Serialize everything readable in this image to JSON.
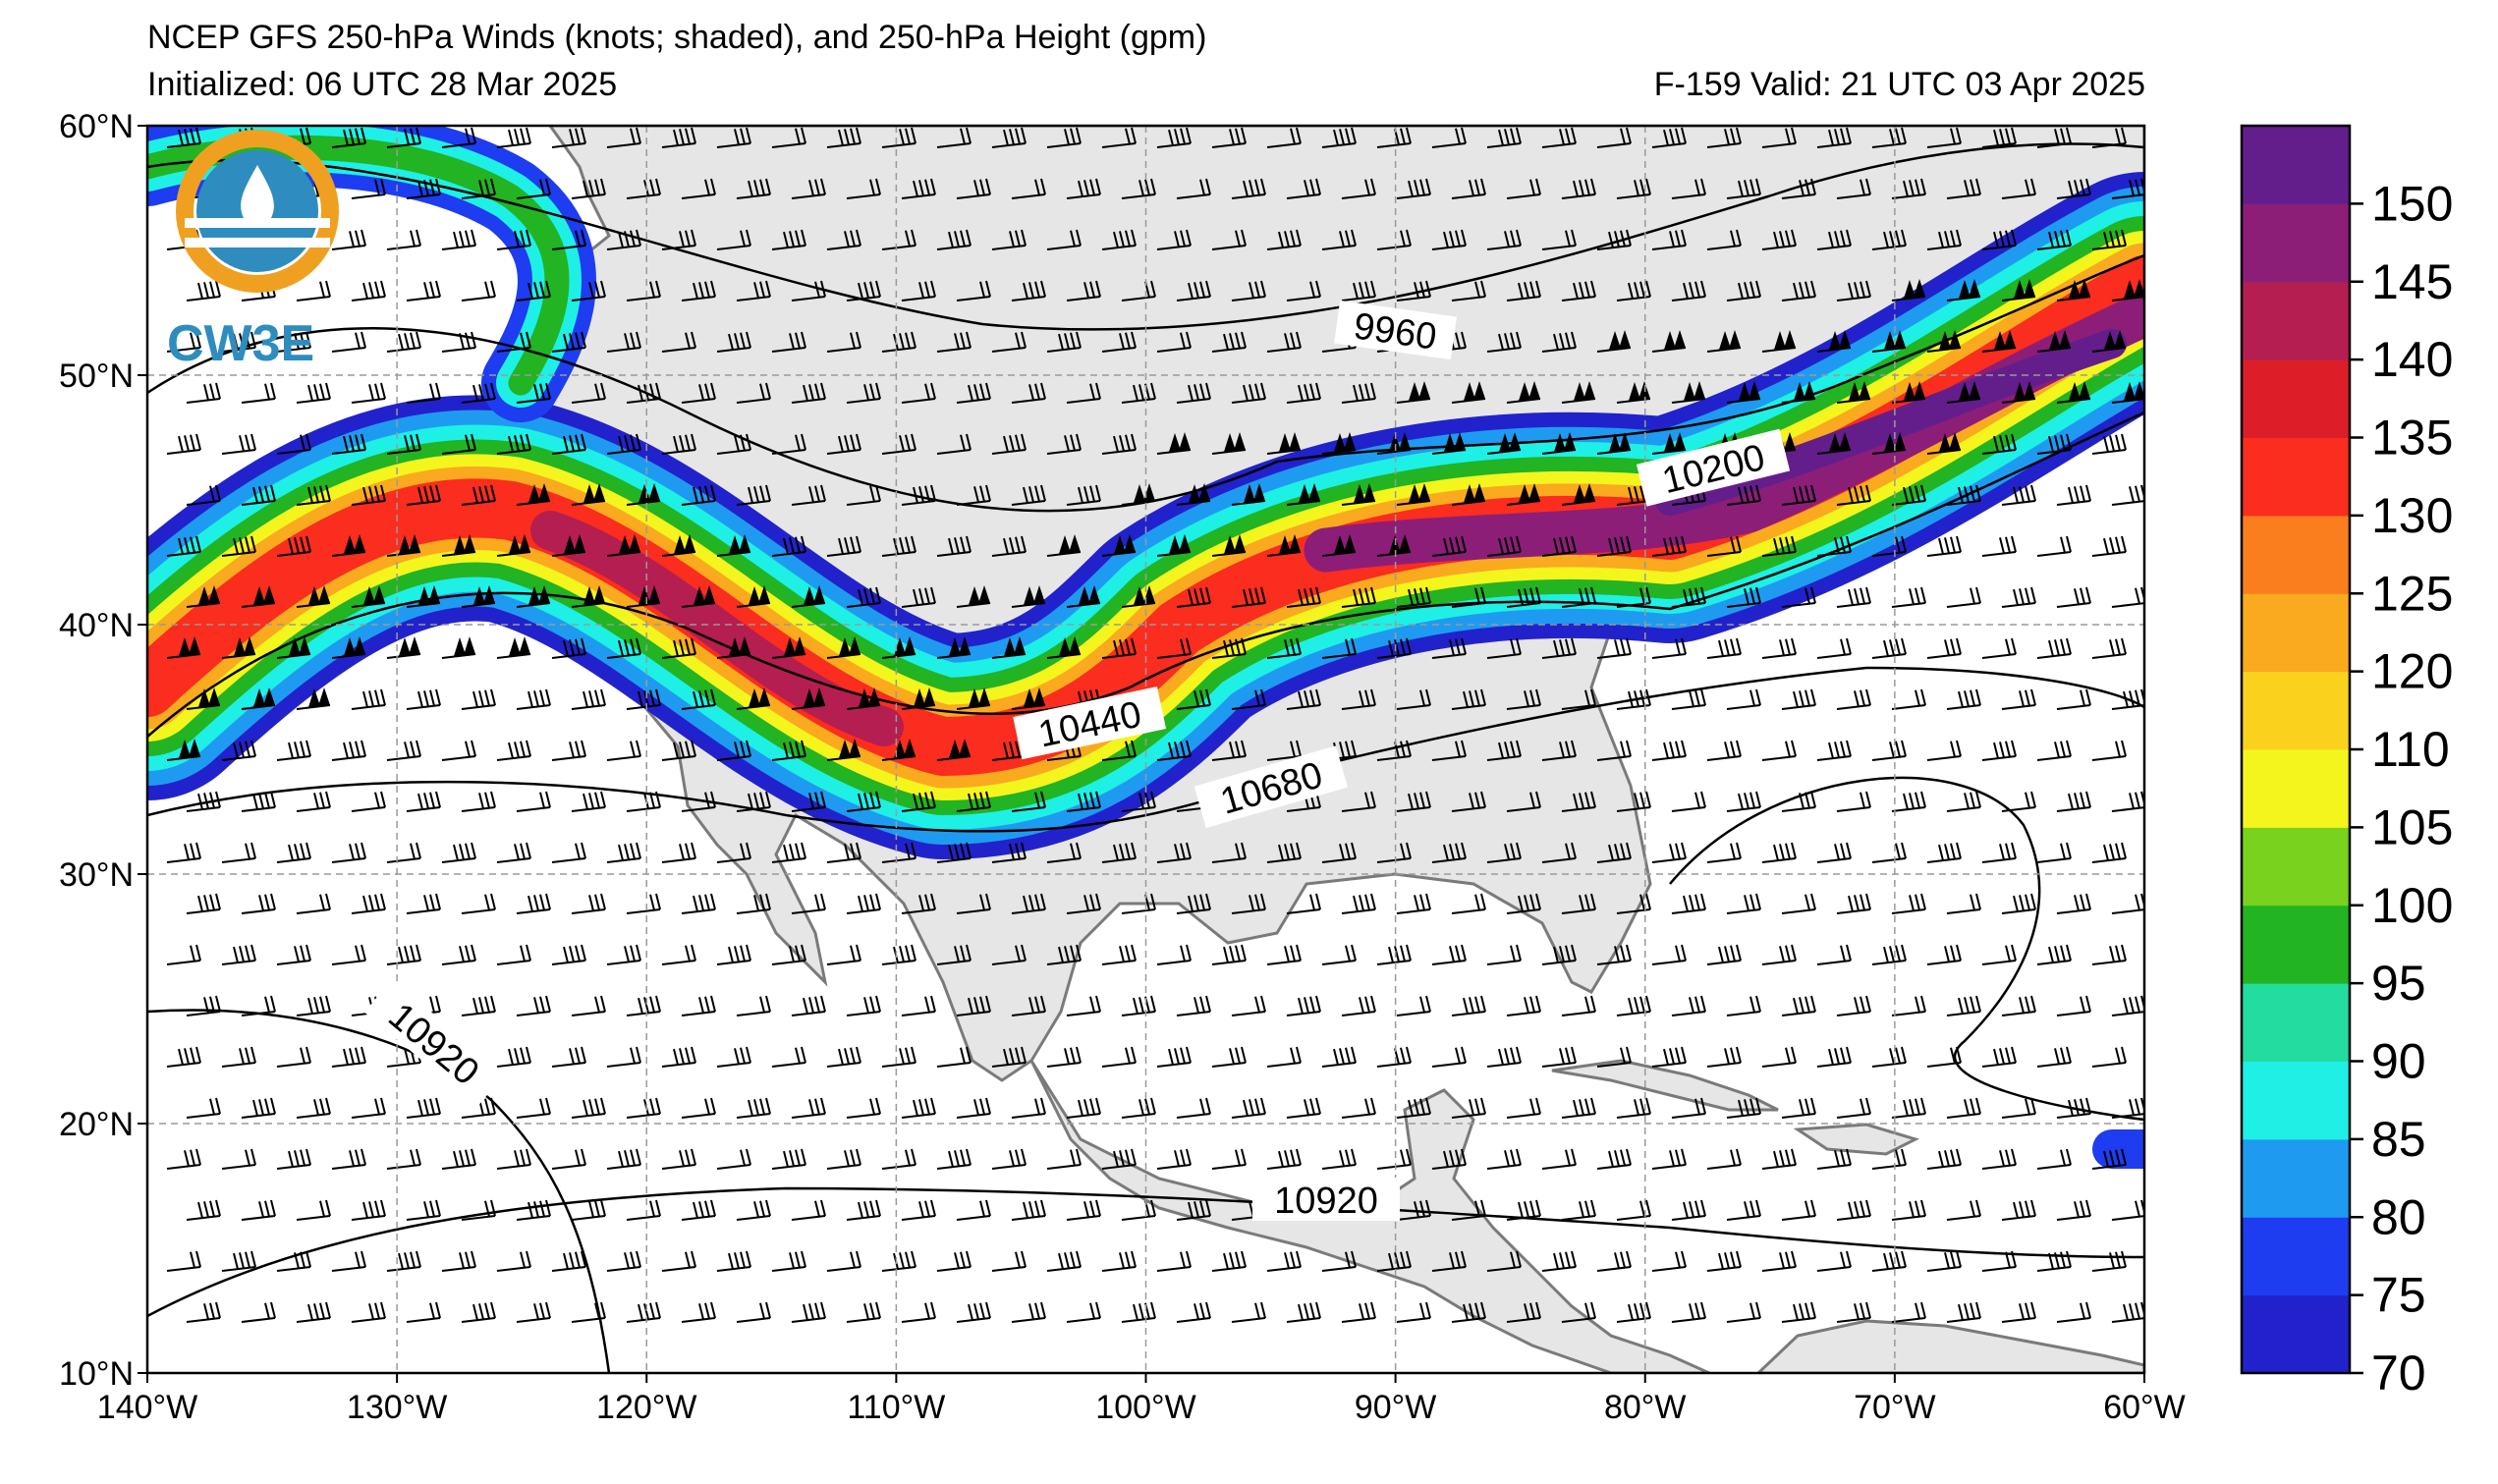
{
  "title": {
    "line1": "NCEP GFS 250-hPa Winds (knots; shaded), and 250-hPa Height (gpm)",
    "initialized": "Initialized: 06 UTC 28 Mar 2025",
    "valid": "F-159  Valid: 21 UTC 03 Apr 2025"
  },
  "logo": {
    "text": "CW3E",
    "icon": "cw3e-logo-icon"
  },
  "map": {
    "projection": "equirectangular",
    "lon_range": [
      -140,
      -60
    ],
    "lat_range": [
      10,
      60
    ],
    "grid": true,
    "lon_ticks": [
      "140°W",
      "130°W",
      "120°W",
      "110°W",
      "100°W",
      "90°W",
      "80°W",
      "70°W",
      "60°W"
    ],
    "lat_ticks": [
      "60°N",
      "50°N",
      "40°N",
      "30°N",
      "20°N",
      "10°N"
    ],
    "land_color": "#e6e6e6",
    "ocean_color": "#ffffff"
  },
  "height_contours": [
    {
      "label": "9960"
    },
    {
      "label": "10200"
    },
    {
      "label": "10440"
    },
    {
      "label": "10680"
    },
    {
      "label": "10920"
    },
    {
      "label": "10920"
    }
  ],
  "colorbar": {
    "units": "knots",
    "levels": [
      70,
      75,
      80,
      85,
      90,
      95,
      100,
      105,
      110,
      120,
      125,
      130,
      135,
      140,
      145,
      150
    ],
    "tick_labels": [
      "70",
      "75",
      "80",
      "85",
      "90",
      "95",
      "100",
      "105",
      "110",
      "120",
      "125",
      "130",
      "135",
      "140",
      "145",
      "150"
    ],
    "colors": [
      "#2222cc",
      "#1e3cf0",
      "#1e9bf0",
      "#1ef0e6",
      "#22dca0",
      "#22b422",
      "#78d21e",
      "#f5f51e",
      "#fad21e",
      "#faaa1e",
      "#fa7d1e",
      "#fa2d1e",
      "#dc1e28",
      "#b41e50",
      "#8c1e78",
      "#641e8c"
    ]
  },
  "features": {
    "jet_stream": "Subtropical/polar jet from eastern Pacific across southern US to Atlantic, maxima >150 kt over the Northeast and off the California coast"
  }
}
